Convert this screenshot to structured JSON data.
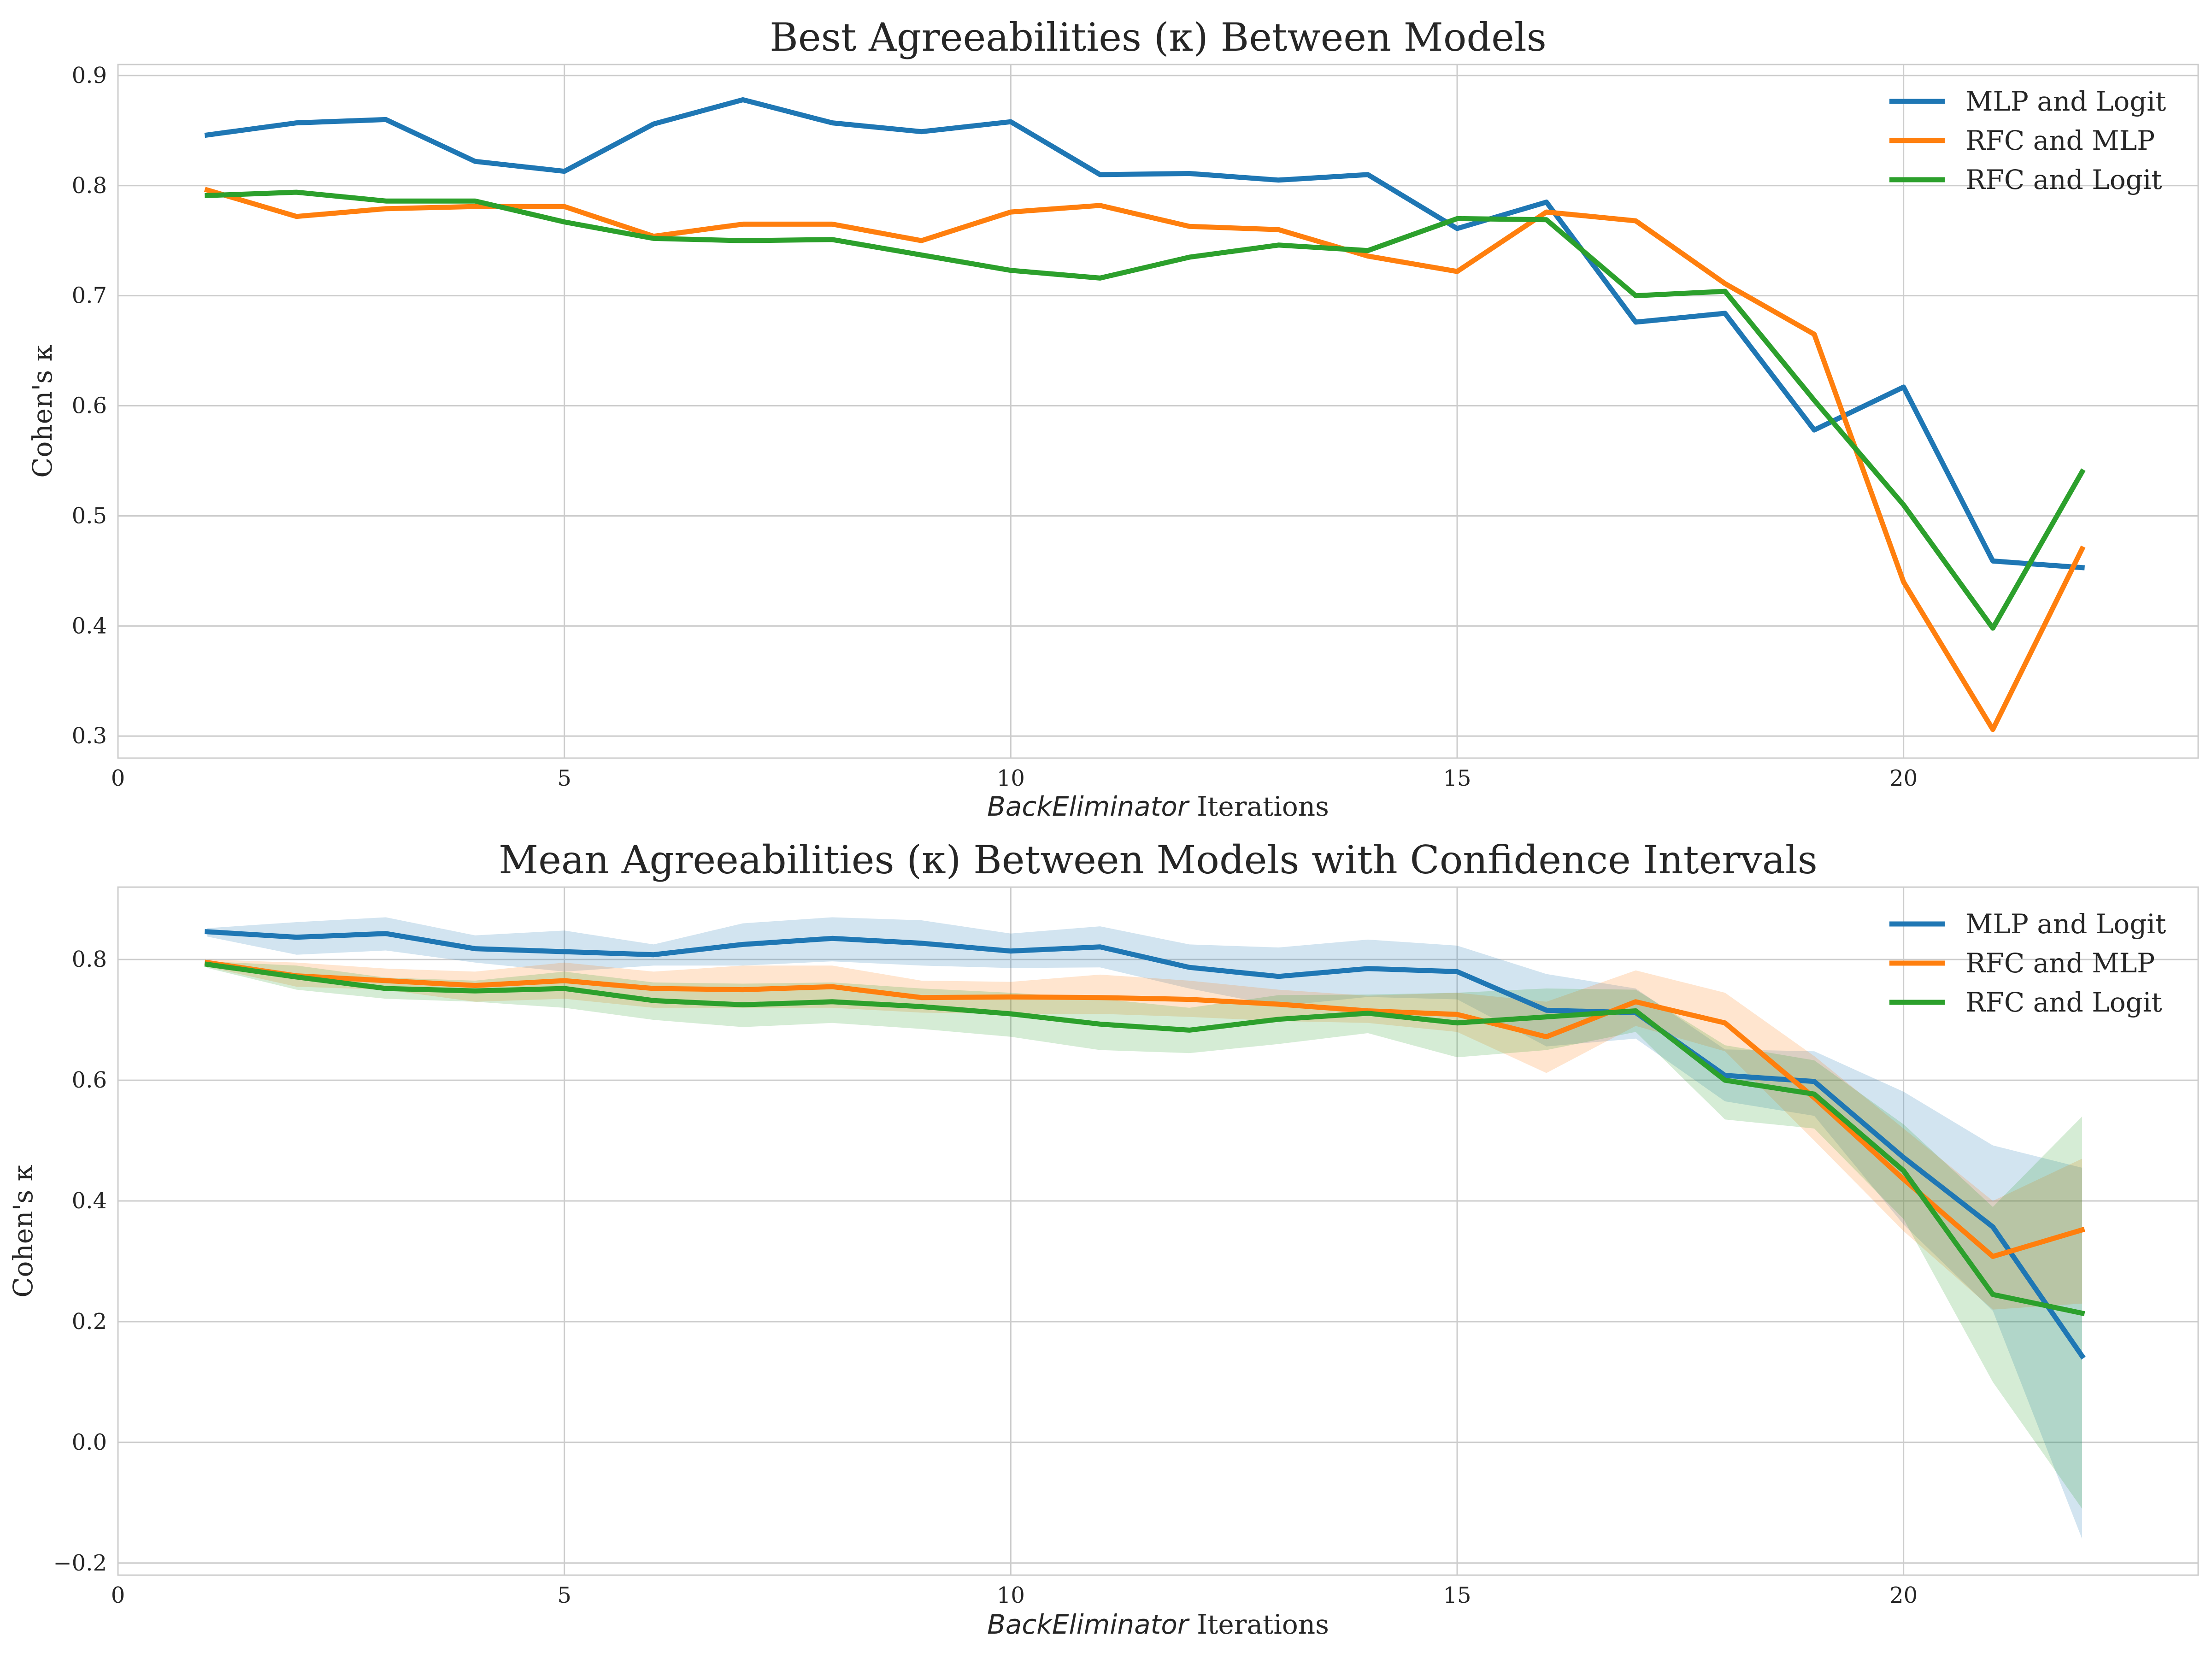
{
  "chart_data": [
    {
      "type": "line",
      "title": "Best Agreeabilities (κ) Between Models",
      "xlabel_italic": "BackEliminator",
      "xlabel_rest": " Iterations",
      "ylabel": "Cohen's κ",
      "xlim": [
        0,
        23.3
      ],
      "ylim": [
        0.28,
        0.91
      ],
      "xticks": [
        0,
        5,
        10,
        15,
        20
      ],
      "yticks": [
        0.3,
        0.4,
        0.5,
        0.6,
        0.7,
        0.8,
        0.9
      ],
      "ytick_labels": [
        "0.3",
        "0.4",
        "0.5",
        "0.6",
        "0.7",
        "0.8",
        "0.9"
      ],
      "grid": true,
      "legend": "top-right",
      "x": [
        1,
        2,
        3,
        4,
        5,
        6,
        7,
        8,
        9,
        10,
        11,
        12,
        13,
        14,
        15,
        16,
        17,
        18,
        19,
        20,
        21,
        22
      ],
      "series": [
        {
          "name": "MLP and Logit",
          "color": "#1f77b4",
          "values": [
            0.846,
            0.857,
            0.86,
            0.822,
            0.813,
            0.856,
            0.878,
            0.857,
            0.849,
            0.858,
            0.81,
            0.811,
            0.805,
            0.81,
            0.761,
            0.785,
            0.676,
            0.684,
            0.578,
            0.617,
            0.459,
            0.453
          ]
        },
        {
          "name": "RFC and MLP",
          "color": "#ff7f0e",
          "values": [
            0.796,
            0.772,
            0.779,
            0.781,
            0.781,
            0.754,
            0.765,
            0.765,
            0.75,
            0.776,
            0.782,
            0.763,
            0.76,
            0.736,
            0.722,
            0.776,
            0.768,
            0.711,
            0.665,
            0.44,
            0.306,
            0.47
          ]
        },
        {
          "name": "RFC and Logit",
          "color": "#2ca02c",
          "values": [
            0.791,
            0.794,
            0.786,
            0.786,
            0.767,
            0.752,
            0.75,
            0.751,
            0.737,
            0.723,
            0.716,
            0.735,
            0.746,
            0.741,
            0.77,
            0.769,
            0.7,
            0.704,
            0.605,
            0.51,
            0.398,
            0.54
          ]
        }
      ]
    },
    {
      "type": "line",
      "title": "Mean Agreeabilities (κ) Between Models with Confidence Intervals",
      "xlabel_italic": "BackEliminator",
      "xlabel_rest": " Iterations",
      "ylabel": "Cohen's κ",
      "xlim": [
        0,
        23.3
      ],
      "ylim": [
        -0.22,
        0.92
      ],
      "xticks": [
        0,
        5,
        10,
        15,
        20
      ],
      "yticks": [
        -0.2,
        0.0,
        0.2,
        0.4,
        0.6,
        0.8
      ],
      "ytick_labels": [
        "−0.2",
        "0.0",
        "0.2",
        "0.4",
        "0.6",
        "0.8"
      ],
      "grid": true,
      "legend": "top-right",
      "x": [
        1,
        2,
        3,
        4,
        5,
        6,
        7,
        8,
        9,
        10,
        11,
        12,
        13,
        14,
        15,
        16,
        17,
        18,
        19,
        20,
        21,
        22
      ],
      "series": [
        {
          "name": "MLP and Logit",
          "color": "#1f77b4",
          "values": [
            0.846,
            0.837,
            0.843,
            0.818,
            0.813,
            0.808,
            0.825,
            0.835,
            0.827,
            0.814,
            0.821,
            0.787,
            0.772,
            0.785,
            0.78,
            0.716,
            0.712,
            0.608,
            0.598,
            0.472,
            0.357,
            0.143
          ],
          "lower": [
            0.838,
            0.808,
            0.815,
            0.795,
            0.78,
            0.79,
            0.79,
            0.797,
            0.79,
            0.786,
            0.787,
            0.752,
            0.723,
            0.738,
            0.734,
            0.656,
            0.669,
            0.565,
            0.541,
            0.361,
            0.218,
            -0.16
          ],
          "upper": [
            0.852,
            0.862,
            0.87,
            0.84,
            0.848,
            0.825,
            0.86,
            0.87,
            0.865,
            0.843,
            0.855,
            0.825,
            0.82,
            0.833,
            0.823,
            0.776,
            0.752,
            0.651,
            0.648,
            0.581,
            0.492,
            0.455
          ]
        },
        {
          "name": "RFC and MLP",
          "color": "#ff7f0e",
          "values": [
            0.795,
            0.773,
            0.765,
            0.757,
            0.765,
            0.752,
            0.75,
            0.755,
            0.737,
            0.738,
            0.737,
            0.734,
            0.726,
            0.715,
            0.709,
            0.672,
            0.73,
            0.695,
            0.571,
            0.436,
            0.308,
            0.352
          ],
          "lower": [
            0.788,
            0.755,
            0.75,
            0.73,
            0.735,
            0.72,
            0.72,
            0.72,
            0.712,
            0.71,
            0.71,
            0.705,
            0.698,
            0.695,
            0.68,
            0.612,
            0.69,
            0.648,
            0.5,
            0.35,
            0.22,
            0.23
          ],
          "upper": [
            0.8,
            0.795,
            0.785,
            0.78,
            0.795,
            0.78,
            0.79,
            0.79,
            0.765,
            0.763,
            0.775,
            0.765,
            0.75,
            0.74,
            0.745,
            0.73,
            0.782,
            0.745,
            0.64,
            0.52,
            0.4,
            0.47
          ]
        },
        {
          "name": "RFC and Logit",
          "color": "#2ca02c",
          "values": [
            0.792,
            0.771,
            0.752,
            0.748,
            0.752,
            0.732,
            0.725,
            0.73,
            0.722,
            0.71,
            0.693,
            0.683,
            0.701,
            0.711,
            0.695,
            0.705,
            0.715,
            0.6,
            0.577,
            0.45,
            0.245,
            0.214
          ],
          "lower": [
            0.786,
            0.75,
            0.735,
            0.73,
            0.72,
            0.7,
            0.688,
            0.695,
            0.685,
            0.672,
            0.65,
            0.645,
            0.66,
            0.678,
            0.638,
            0.65,
            0.68,
            0.535,
            0.52,
            0.37,
            0.1,
            -0.11
          ],
          "upper": [
            0.797,
            0.79,
            0.77,
            0.765,
            0.78,
            0.762,
            0.76,
            0.762,
            0.752,
            0.745,
            0.735,
            0.72,
            0.741,
            0.742,
            0.745,
            0.752,
            0.75,
            0.658,
            0.633,
            0.527,
            0.39,
            0.54
          ]
        }
      ]
    }
  ]
}
